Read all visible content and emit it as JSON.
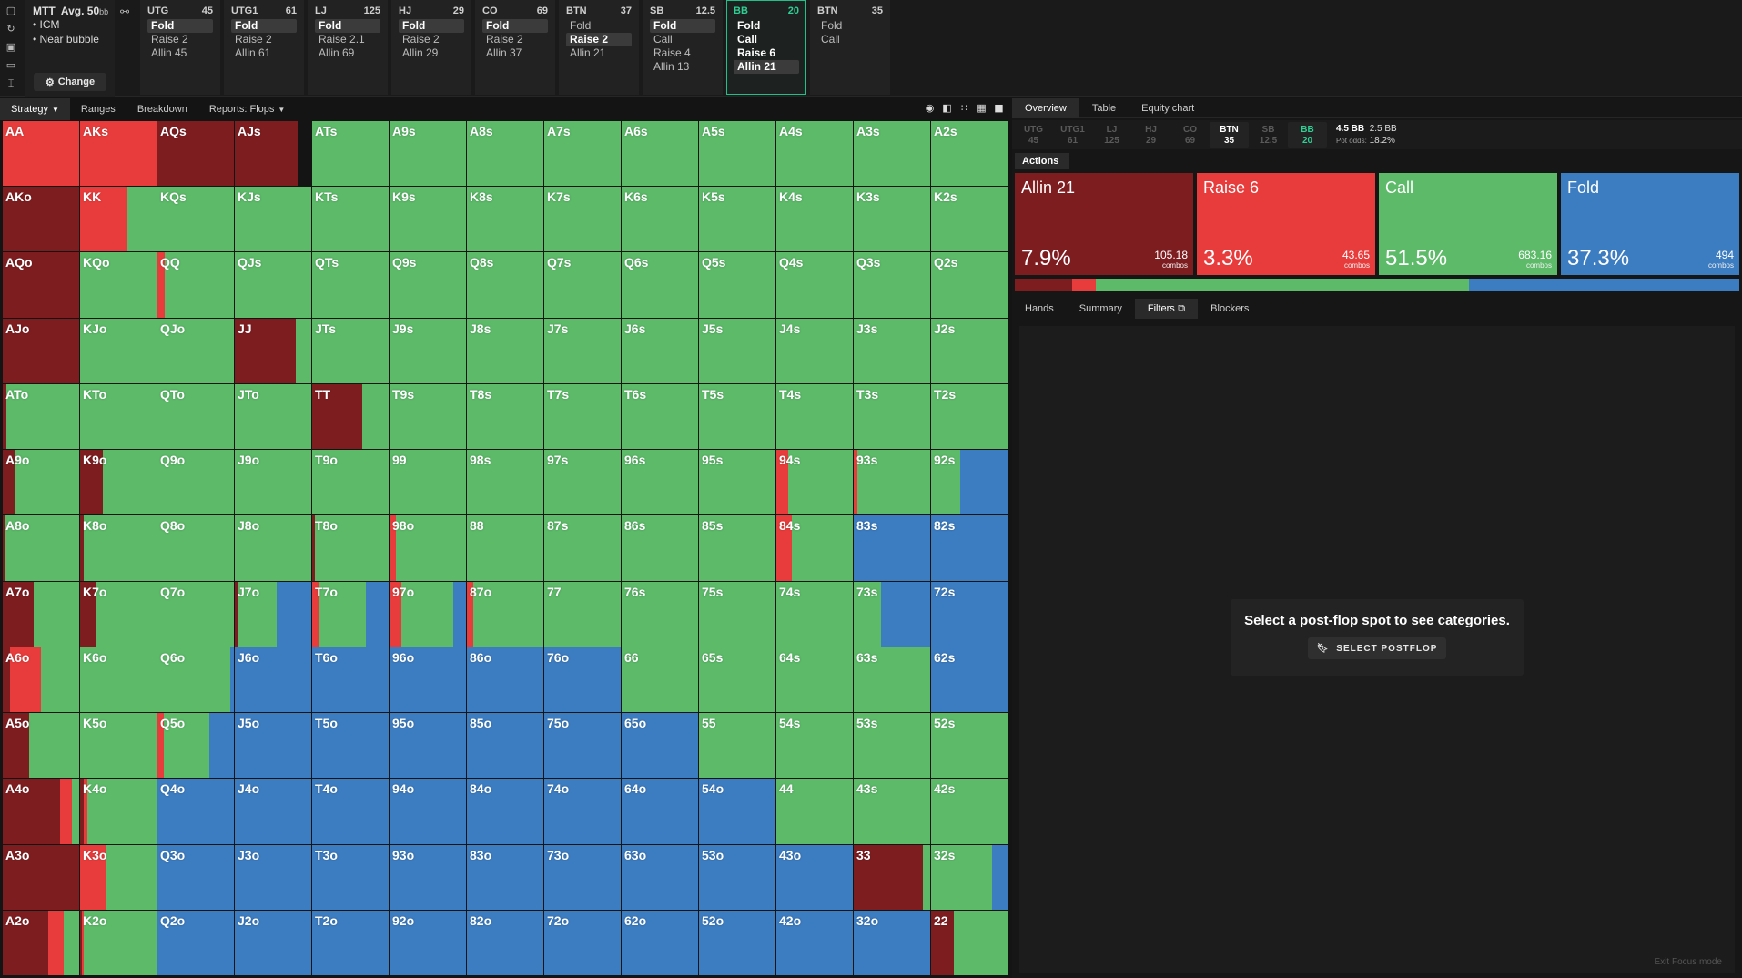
{
  "colors": {
    "allin": "#7e1d20",
    "raise": "#e83c3c",
    "call": "#5cba69",
    "fold": "#3c7cc0"
  },
  "game": {
    "title": "MTT",
    "avg_label": "Avg. 50",
    "avg_unit": "bb",
    "bullets": [
      "• ICM",
      "• Near bubble"
    ],
    "change_label": "Change"
  },
  "positions": [
    {
      "name": "UTG",
      "stack": "45",
      "actions": [
        {
          "t": "Fold",
          "s": "sel"
        },
        {
          "t": "Raise 2",
          "s": ""
        },
        {
          "t": "Allin 45",
          "s": ""
        }
      ]
    },
    {
      "name": "UTG1",
      "stack": "61",
      "actions": [
        {
          "t": "Fold",
          "s": "sel"
        },
        {
          "t": "Raise 2",
          "s": ""
        },
        {
          "t": "Allin 61",
          "s": ""
        }
      ]
    },
    {
      "name": "LJ",
      "stack": "125",
      "actions": [
        {
          "t": "Fold",
          "s": "sel"
        },
        {
          "t": "Raise 2.1",
          "s": ""
        },
        {
          "t": "Allin 69",
          "s": ""
        }
      ]
    },
    {
      "name": "HJ",
      "stack": "29",
      "actions": [
        {
          "t": "Fold",
          "s": "sel"
        },
        {
          "t": "Raise 2",
          "s": ""
        },
        {
          "t": "Allin 29",
          "s": ""
        }
      ]
    },
    {
      "name": "CO",
      "stack": "69",
      "actions": [
        {
          "t": "Fold",
          "s": "sel"
        },
        {
          "t": "Raise 2",
          "s": ""
        },
        {
          "t": "Allin 37",
          "s": ""
        }
      ]
    },
    {
      "name": "BTN",
      "stack": "37",
      "actions": [
        {
          "t": "Fold",
          "s": ""
        },
        {
          "t": "Raise 2",
          "s": "sel"
        },
        {
          "t": "Allin 21",
          "s": ""
        }
      ]
    },
    {
      "name": "SB",
      "stack": "12.5",
      "actions": [
        {
          "t": "Fold",
          "s": "sel"
        },
        {
          "t": "Call",
          "s": ""
        },
        {
          "t": "Raise 4",
          "s": ""
        },
        {
          "t": "Allin 13",
          "s": ""
        }
      ]
    },
    {
      "name": "BB",
      "stack": "20",
      "active": true,
      "actions": [
        {
          "t": "Fold",
          "s": "bold"
        },
        {
          "t": "Call",
          "s": "bold"
        },
        {
          "t": "Raise 6",
          "s": "bold"
        },
        {
          "t": "Allin 21",
          "s": "sel"
        }
      ]
    },
    {
      "name": "BTN",
      "stack": "35",
      "actions": [
        {
          "t": "Fold",
          "s": ""
        },
        {
          "t": "Call",
          "s": ""
        }
      ]
    }
  ],
  "left_tabs": [
    {
      "label": "Strategy",
      "active": true,
      "caret": true
    },
    {
      "label": "Ranges",
      "active": false,
      "caret": false
    },
    {
      "label": "Breakdown",
      "active": false,
      "caret": false
    },
    {
      "label": "Reports: Flops",
      "active": false,
      "caret": true
    }
  ],
  "view_icons": [
    "grid-view-icon-1",
    "grid-view-icon-2",
    "grid-view-icon-3",
    "grid-view-icon-4",
    "grid-view-icon-5"
  ],
  "right_tabs": [
    {
      "label": "Overview",
      "active": true
    },
    {
      "label": "Table",
      "active": false
    },
    {
      "label": "Equity chart",
      "active": false
    }
  ],
  "stacks": [
    {
      "pos": "UTG",
      "val": "45",
      "st": ""
    },
    {
      "pos": "UTG1",
      "val": "61",
      "st": ""
    },
    {
      "pos": "LJ",
      "val": "125",
      "st": ""
    },
    {
      "pos": "HJ",
      "val": "29",
      "st": ""
    },
    {
      "pos": "CO",
      "val": "69",
      "st": ""
    },
    {
      "pos": "BTN",
      "val": "35",
      "st": "on"
    },
    {
      "pos": "SB",
      "val": "12.5",
      "st": ""
    },
    {
      "pos": "BB",
      "val": "20",
      "st": "cur"
    }
  ],
  "pot": {
    "bb": "4.5 BB",
    "bb2": "2.5 BB",
    "odds_label": "Pot odds:",
    "odds": "18.2%"
  },
  "actions_label": "Actions",
  "action_summary": [
    {
      "name": "Allin 21",
      "pct": "7.9%",
      "combos": "105.18",
      "unit": "combos",
      "color": "#7e1d20",
      "freq": 0.079
    },
    {
      "name": "Raise 6",
      "pct": "3.3%",
      "combos": "43.65",
      "unit": "combos",
      "color": "#e83c3c",
      "freq": 0.033
    },
    {
      "name": "Call",
      "pct": "51.5%",
      "combos": "683.16",
      "unit": "combos",
      "color": "#5cba69",
      "freq": 0.515
    },
    {
      "name": "Fold",
      "pct": "37.3%",
      "combos": "494",
      "unit": "combos",
      "color": "#3c7cc0",
      "freq": 0.373
    }
  ],
  "sub_tabs": [
    {
      "label": "Hands",
      "active": false
    },
    {
      "label": "Summary",
      "active": false
    },
    {
      "label": "Filters",
      "active": true
    },
    {
      "label": "Blockers",
      "active": false
    }
  ],
  "empty_state": {
    "message": "Select a post-flop spot to see categories.",
    "button": "SELECT POSTFLOP"
  },
  "exit_focus": "Exit Focus mode",
  "hand_grid": [
    [
      "AA",
      "AKs",
      "AQs",
      "AJs",
      "ATs",
      "A9s",
      "A8s",
      "A7s",
      "A6s",
      "A5s",
      "A4s",
      "A3s",
      "A2s"
    ],
    [
      "AKo",
      "KK",
      "KQs",
      "KJs",
      "KTs",
      "K9s",
      "K8s",
      "K7s",
      "K6s",
      "K5s",
      "K4s",
      "K3s",
      "K2s"
    ],
    [
      "AQo",
      "KQo",
      "QQ",
      "QJs",
      "QTs",
      "Q9s",
      "Q8s",
      "Q7s",
      "Q6s",
      "Q5s",
      "Q4s",
      "Q3s",
      "Q2s"
    ],
    [
      "AJo",
      "KJo",
      "QJo",
      "JJ",
      "JTs",
      "J9s",
      "J8s",
      "J7s",
      "J6s",
      "J5s",
      "J4s",
      "J3s",
      "J2s"
    ],
    [
      "ATo",
      "KTo",
      "QTo",
      "JTo",
      "TT",
      "T9s",
      "T8s",
      "T7s",
      "T6s",
      "T5s",
      "T4s",
      "T3s",
      "T2s"
    ],
    [
      "A9o",
      "K9o",
      "Q9o",
      "J9o",
      "T9o",
      "99",
      "98s",
      "97s",
      "96s",
      "95s",
      "94s",
      "93s",
      "92s"
    ],
    [
      "A8o",
      "K8o",
      "Q8o",
      "J8o",
      "T8o",
      "98o",
      "88",
      "87s",
      "86s",
      "85s",
      "84s",
      "83s",
      "82s"
    ],
    [
      "A7o",
      "K7o",
      "Q7o",
      "J7o",
      "T7o",
      "97o",
      "87o",
      "77",
      "76s",
      "75s",
      "74s",
      "73s",
      "72s"
    ],
    [
      "A6o",
      "K6o",
      "Q6o",
      "J6o",
      "T6o",
      "96o",
      "86o",
      "76o",
      "66",
      "65s",
      "64s",
      "63s",
      "62s"
    ],
    [
      "A5o",
      "K5o",
      "Q5o",
      "J5o",
      "T5o",
      "95o",
      "85o",
      "75o",
      "65o",
      "55",
      "54s",
      "53s",
      "52s"
    ],
    [
      "A4o",
      "K4o",
      "Q4o",
      "J4o",
      "T4o",
      "94o",
      "84o",
      "74o",
      "64o",
      "54o",
      "44",
      "43s",
      "42s"
    ],
    [
      "A3o",
      "K3o",
      "Q3o",
      "J3o",
      "T3o",
      "93o",
      "83o",
      "73o",
      "63o",
      "53o",
      "43o",
      "33",
      "32s"
    ],
    [
      "A2o",
      "K2o",
      "Q2o",
      "J2o",
      "T2o",
      "92o",
      "82o",
      "72o",
      "62o",
      "52o",
      "42o",
      "32o",
      "22"
    ]
  ],
  "strategy_overrides": {
    "AA": [
      [
        0,
        1,
        0,
        0
      ]
    ],
    "AKs": [
      [
        0,
        1,
        0,
        0
      ]
    ],
    "AQs": [
      [
        1,
        0,
        0,
        0
      ]
    ],
    "AJs": [
      [
        0.82,
        0,
        0,
        0
      ],
      [
        0,
        0.18,
        0,
        0
      ]
    ],
    "AKo": [
      [
        1,
        0,
        0,
        0
      ]
    ],
    "KK": [
      [
        0,
        0.62,
        0.38,
        0
      ]
    ],
    "AQo": [
      [
        1,
        0,
        0,
        0
      ]
    ],
    "QQ": [
      [
        0,
        0.1,
        0.9,
        0
      ]
    ],
    "AJo": [
      [
        1,
        0,
        0,
        0
      ]
    ],
    "JJ": [
      [
        0.8,
        0,
        0.2,
        0
      ]
    ],
    "ATo": [
      [
        0.05,
        0,
        0.95,
        0
      ]
    ],
    "TT": [
      [
        0.65,
        0,
        0.35,
        0
      ]
    ],
    "A9o": [
      [
        0.15,
        0,
        0.85,
        0
      ]
    ],
    "K9o": [
      [
        0.3,
        0,
        0.7,
        0
      ]
    ],
    "A8o": [
      [
        0.03,
        0,
        0.97,
        0
      ]
    ],
    "K8o": [
      [
        0.05,
        0,
        0.95,
        0
      ]
    ],
    "T8o": [
      [
        0.03,
        0,
        0.97,
        0
      ]
    ],
    "98o": [
      [
        0,
        0.08,
        0.92,
        0
      ]
    ],
    "94s": [
      [
        0,
        0.16,
        0.84,
        0
      ]
    ],
    "93s": [
      [
        0,
        0.05,
        0.95,
        0
      ]
    ],
    "92s": [
      [
        0,
        0,
        0.38,
        0.62
      ]
    ],
    "84s": [
      [
        0,
        0.2,
        0.8,
        0
      ]
    ],
    "83s": [
      [
        0,
        0,
        0,
        1
      ]
    ],
    "82s": [
      [
        0,
        0,
        0,
        1
      ]
    ],
    "A7o": [
      [
        0.4,
        0,
        0.6,
        0
      ]
    ],
    "K7o": [
      [
        0.2,
        0,
        0.8,
        0
      ]
    ],
    "J7o": [
      [
        0.03,
        0,
        0.52,
        0.45
      ]
    ],
    "T7o": [
      [
        0,
        0.1,
        0.6,
        0.3
      ]
    ],
    "97o": [
      [
        0,
        0.15,
        0.68,
        0.17
      ]
    ],
    "87o": [
      [
        0,
        0.08,
        0.92,
        0
      ]
    ],
    "73s": [
      [
        0,
        0,
        0.36,
        0.64
      ]
    ],
    "72s": [
      [
        0,
        0,
        0,
        1
      ]
    ],
    "A6o": [
      [
        0.1,
        0.4,
        0.5,
        0
      ]
    ],
    "K6o": [
      [
        0,
        0,
        1,
        0
      ]
    ],
    "Q6o": [
      [
        0,
        0,
        0.95,
        0.05
      ]
    ],
    "62s": [
      [
        0,
        0,
        0,
        1
      ]
    ],
    "Q5o": [
      [
        0,
        0.08,
        0.6,
        0.32
      ]
    ],
    "A5o": [
      [
        0.35,
        0,
        0.65,
        0
      ]
    ],
    "A4o": [
      [
        0.75,
        0.15,
        0.1,
        0
      ]
    ],
    "K4o": [
      [
        0.05,
        0.05,
        0.9,
        0
      ]
    ],
    "A3o": [
      [
        1,
        0,
        0,
        0
      ]
    ],
    "K3o": [
      [
        0,
        0.35,
        0.65,
        0
      ]
    ],
    "33": [
      [
        0.9,
        0,
        0.1,
        0
      ]
    ],
    "32s": [
      [
        0,
        0,
        0.8,
        0.2
      ]
    ],
    "A2o": [
      [
        0.6,
        0.2,
        0.2,
        0
      ]
    ],
    "K2o": [
      [
        0.02,
        0.03,
        0.95,
        0
      ]
    ],
    "22": [
      [
        0.3,
        0,
        0.7,
        0
      ]
    ]
  },
  "fold_region": [
    "J6o",
    "T6o",
    "96o",
    "86o",
    "76o",
    "J5o",
    "T5o",
    "95o",
    "85o",
    "75o",
    "65o",
    "Q4o",
    "J4o",
    "T4o",
    "94o",
    "84o",
    "74o",
    "64o",
    "54o",
    "Q3o",
    "J3o",
    "T3o",
    "93o",
    "83o",
    "73o",
    "63o",
    "53o",
    "43o",
    "Q2o",
    "J2o",
    "T2o",
    "92o",
    "82o",
    "72o",
    "62o",
    "52o",
    "42o",
    "32o"
  ]
}
